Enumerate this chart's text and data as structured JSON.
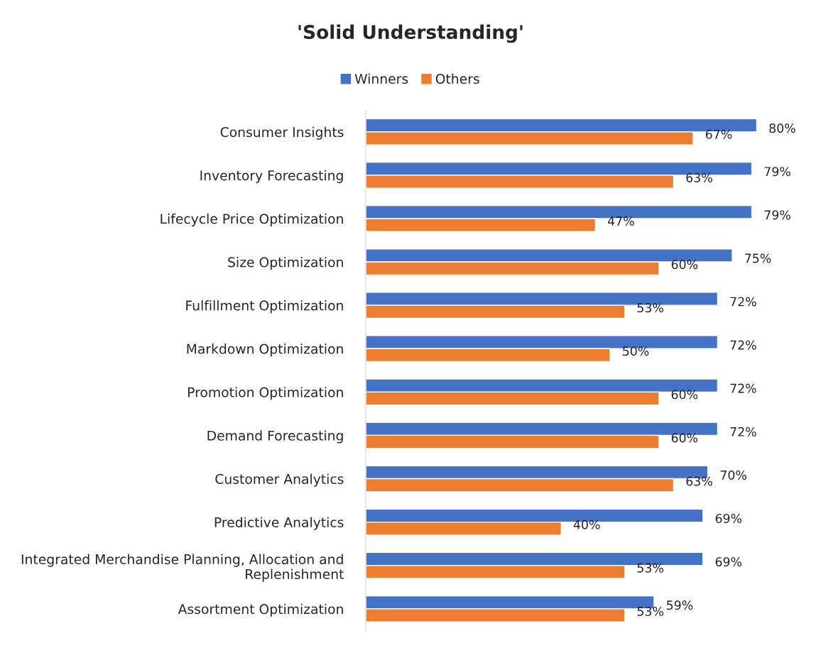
{
  "chart_data": {
    "type": "bar",
    "orientation": "horizontal",
    "title": "'Solid Understanding'",
    "legend": "top",
    "categories": [
      "Consumer Insights",
      "Inventory Forecasting",
      "Lifecycle Price Optimization",
      "Size Optimization",
      "Fulfillment Optimization",
      "Markdown Optimization",
      "Promotion Optimization",
      "Demand Forecasting",
      "Customer Analytics",
      "Predictive Analytics",
      "Integrated Merchandise Planning, Allocation and\nReplenishment",
      "Assortment Optimization"
    ],
    "series": [
      {
        "name": "Winners",
        "color": "#4472c4",
        "values": [
          80,
          79,
          79,
          75,
          72,
          72,
          72,
          72,
          70,
          69,
          69,
          59
        ],
        "value_labels": [
          "80%",
          "79%",
          "79%",
          "75%",
          "72%",
          "72%",
          "72%",
          "72%",
          "70%",
          "69%",
          "69%",
          "59%"
        ]
      },
      {
        "name": "Others",
        "color": "#ed7d31",
        "values": [
          67,
          63,
          47,
          60,
          53,
          50,
          60,
          60,
          63,
          40,
          53,
          53
        ],
        "value_labels": [
          "67%",
          "63%",
          "47%",
          "60%",
          "53%",
          "50%",
          "60%",
          "60%",
          "63%",
          "40%",
          "53%",
          "53%"
        ]
      }
    ]
  }
}
